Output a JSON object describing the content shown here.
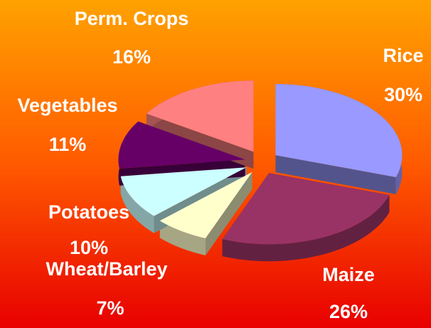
{
  "chart_data": {
    "type": "pie",
    "categories": [
      "Rice",
      "Maize",
      "Wheat/Barley",
      "Potatoes",
      "Vegetables",
      "Perm. Crops"
    ],
    "values": [
      30,
      26,
      7,
      10,
      11,
      16
    ],
    "value_labels": [
      "30%",
      "26%",
      "7%",
      "10%",
      "11%",
      "16%"
    ],
    "colors": [
      "#9999ff",
      "#993366",
      "#ffffcc",
      "#ccffff",
      "#660066",
      "#ff8080"
    ]
  }
}
